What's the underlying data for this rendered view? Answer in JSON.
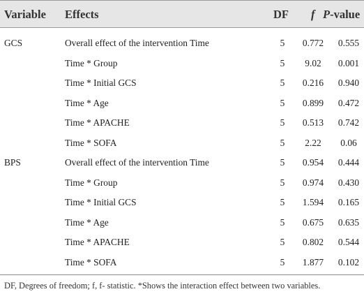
{
  "table": {
    "headers": {
      "variable": "Variable",
      "effects": "Effects",
      "df": "DF",
      "f": "f",
      "p_italic": "P",
      "p_rest": "-value"
    },
    "rows": [
      {
        "variable": "GCS",
        "effect": "Overall effect of the intervention Time",
        "df": "5",
        "f": "0.772",
        "p": "0.555"
      },
      {
        "variable": "",
        "effect": "Time * Group",
        "df": "5",
        "f": "9.02",
        "p": "0.001"
      },
      {
        "variable": "",
        "effect": "Time * Initial GCS",
        "df": "5",
        "f": "0.216",
        "p": "0.940"
      },
      {
        "variable": "",
        "effect": "Time * Age",
        "df": "5",
        "f": "0.899",
        "p": "0.472"
      },
      {
        "variable": "",
        "effect": "Time * APACHE",
        "df": "5",
        "f": "0.513",
        "p": "0.742"
      },
      {
        "variable": "",
        "effect": "Time * SOFA",
        "df": "5",
        "f": "2.22",
        "p": "0.06"
      },
      {
        "variable": "BPS",
        "effect": "Overall effect of the intervention Time",
        "df": "5",
        "f": "0.954",
        "p": "0.444"
      },
      {
        "variable": "",
        "effect": "Time * Group",
        "df": "5",
        "f": "0.974",
        "p": "0.430"
      },
      {
        "variable": "",
        "effect": "Time * Initial GCS",
        "df": "5",
        "f": "1.594",
        "p": "0.165"
      },
      {
        "variable": "",
        "effect": "Time * Age",
        "df": "5",
        "f": "0.675",
        "p": "0.635"
      },
      {
        "variable": "",
        "effect": "Time * APACHE",
        "df": "5",
        "f": "0.802",
        "p": "0.544"
      },
      {
        "variable": "",
        "effect": "Time * SOFA",
        "df": "5",
        "f": "1.877",
        "p": "0.102"
      }
    ],
    "footnote": "DF, Degrees of freedom; f, f- statistic. *Shows the interaction effect between two variables."
  }
}
